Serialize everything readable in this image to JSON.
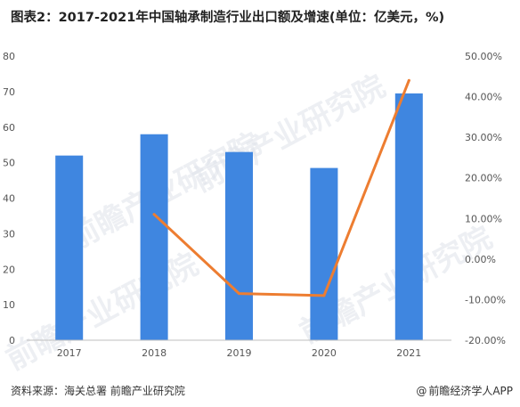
{
  "title": "图表2：2017-2021年中国轴承制造行业出口额及增速(单位：亿美元，%)",
  "footer": {
    "source": "资料来源：海关总署  前瞻产业研究院",
    "brand_at": "@",
    "brand": "前瞻经济学人APP"
  },
  "watermark": {
    "text": "前瞻产业研究院"
  },
  "colors": {
    "bar": "#3f86e0",
    "line": "#ed7d31",
    "axis": "#bfbfbf",
    "text": "#555555"
  },
  "chart_data": {
    "type": "bar",
    "categories": [
      "2017",
      "2018",
      "2019",
      "2020",
      "2021"
    ],
    "series": [
      {
        "type": "bar",
        "axis": "left",
        "values": [
          52,
          58,
          53,
          48.5,
          69.5
        ]
      },
      {
        "type": "line",
        "axis": "right",
        "values": [
          null,
          11.0,
          -8.5,
          -9.0,
          44.0
        ]
      }
    ],
    "ylim_left": [
      0,
      80
    ],
    "yticks_left": [
      "0",
      "10",
      "20",
      "30",
      "40",
      "50",
      "60",
      "70",
      "80"
    ],
    "ylim_right": [
      -20,
      50
    ],
    "yticks_right": [
      "-20.00%",
      "-10.00%",
      "0.00%",
      "10.00%",
      "20.00%",
      "30.00%",
      "40.00%",
      "50.00%"
    ],
    "grid": false
  }
}
